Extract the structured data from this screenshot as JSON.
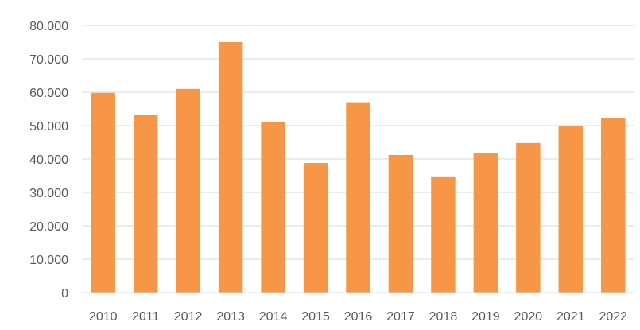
{
  "chart_data": {
    "type": "bar",
    "categories": [
      "2010",
      "2011",
      "2012",
      "2013",
      "2014",
      "2015",
      "2016",
      "2017",
      "2018",
      "2019",
      "2020",
      "2021",
      "2022"
    ],
    "values": [
      59800,
      53100,
      61000,
      75000,
      51200,
      38800,
      57000,
      41200,
      34800,
      41800,
      44800,
      50000,
      52200
    ],
    "ylim": [
      0,
      80000
    ],
    "yticks": [
      0,
      10000,
      20000,
      30000,
      40000,
      50000,
      60000,
      70000,
      80000
    ],
    "ytick_labels": [
      "0",
      "10.000",
      "20.000",
      "30.000",
      "40.000",
      "50.000",
      "60.000",
      "70.000",
      "80.000"
    ],
    "grid": true,
    "legend": "none",
    "colors": {
      "bar": "#f79646"
    }
  }
}
